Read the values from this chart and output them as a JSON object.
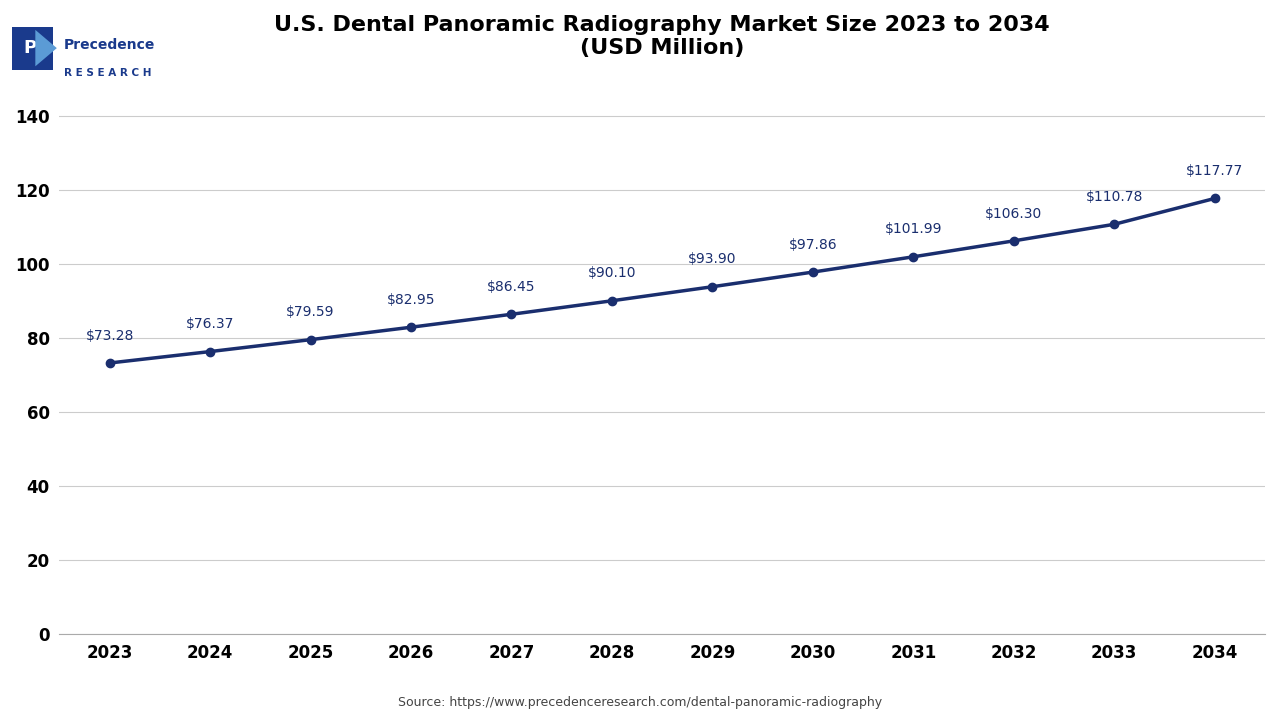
{
  "title_line1": "U.S. Dental Panoramic Radiography Market Size 2023 to 2034",
  "title_line2": "(USD Million)",
  "years": [
    2023,
    2024,
    2025,
    2026,
    2027,
    2028,
    2029,
    2030,
    2031,
    2032,
    2033,
    2034
  ],
  "values": [
    73.28,
    76.37,
    79.59,
    82.95,
    86.45,
    90.1,
    93.9,
    97.86,
    101.99,
    106.3,
    110.78,
    117.77
  ],
  "labels": [
    "$73.28",
    "$76.37",
    "$79.59",
    "$82.95",
    "$86.45",
    "$90.10",
    "$93.90",
    "$97.86",
    "$101.99",
    "$106.30",
    "$110.78",
    "$117.77"
  ],
  "line_color": "#1a2e6e",
  "marker_color": "#1a2e6e",
  "ylim": [
    0,
    150
  ],
  "yticks": [
    0,
    20,
    40,
    60,
    80,
    100,
    120,
    140
  ],
  "source_text": "Source: https://www.precedenceresearch.com/dental-panoramic-radiography",
  "background_color": "#ffffff",
  "grid_color": "#cccccc",
  "title_color": "#000000",
  "tick_color": "#000000",
  "label_fontsize": 10,
  "title_fontsize": 16,
  "source_fontsize": 9,
  "logo_blue_dark": "#1a3a8c",
  "logo_blue_light": "#5b9bd5"
}
